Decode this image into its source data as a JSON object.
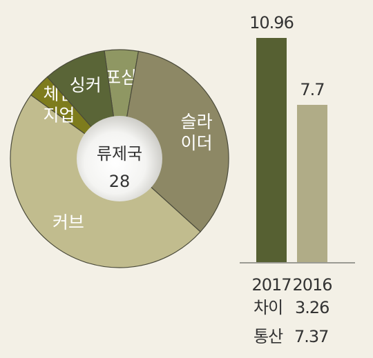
{
  "chart_data": [
    {
      "type": "pie",
      "center_label": "류제국",
      "center_value": "28",
      "slices": [
        {
          "name": "포심",
          "value": 1.4,
          "color": "#8f9763",
          "label_lines": [
            "포심"
          ]
        },
        {
          "name": "슬라이더",
          "value": 9.5,
          "color": "#8d8865",
          "label_lines": [
            "슬라",
            "이더"
          ]
        },
        {
          "name": "커브",
          "value": 13.5,
          "color": "#c1bc8e",
          "label_lines": [
            "커브"
          ]
        },
        {
          "name": "체인지업",
          "value": 1.0,
          "color": "#7e7c1d",
          "label_lines": [
            "체인",
            "지업"
          ]
        },
        {
          "name": "싱커",
          "value": 2.6,
          "color": "#5a6537",
          "label_lines": [
            "싱커"
          ]
        }
      ]
    },
    {
      "type": "bar",
      "categories": [
        "2017",
        "2016"
      ],
      "values": [
        10.96,
        7.7
      ],
      "value_labels": [
        "10.96",
        "7.7"
      ],
      "colors": [
        "#566032",
        "#b0ac87"
      ],
      "ylim": [
        0,
        11.6
      ]
    }
  ],
  "footnote": {
    "diff_label": "차이",
    "diff_value": "3.26",
    "total_label": "통산",
    "total_value": "7.37"
  }
}
